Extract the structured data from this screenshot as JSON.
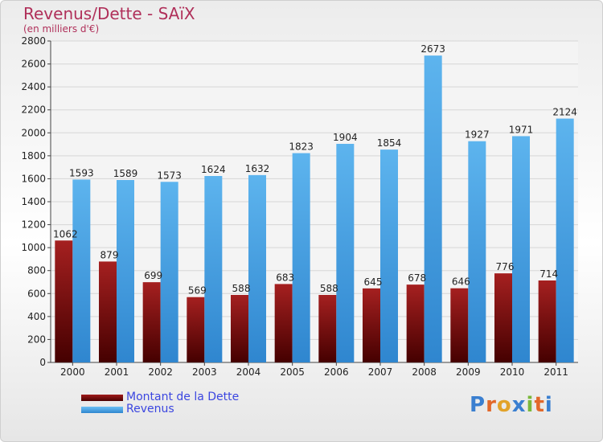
{
  "title": "Revenus/Dette - SAïX",
  "subtitle": "(en milliers d'€)",
  "logo_text": "Proxiti",
  "colors": {
    "dette": "#7a1010",
    "revenus": "#4aa3e6",
    "title": "#b0305a",
    "legend_text": "#3b46e0"
  },
  "chart_data": {
    "type": "bar",
    "categories": [
      "2000",
      "2001",
      "2002",
      "2003",
      "2004",
      "2005",
      "2006",
      "2007",
      "2008",
      "2009",
      "2010",
      "2011"
    ],
    "series": [
      {
        "name": "Montant de la Dette",
        "values": [
          1062,
          879,
          699,
          569,
          588,
          683,
          588,
          645,
          678,
          646,
          776,
          714
        ]
      },
      {
        "name": "Revenus",
        "values": [
          1593,
          1589,
          1573,
          1624,
          1632,
          1823,
          1904,
          1854,
          2673,
          1927,
          1971,
          2124
        ]
      }
    ],
    "ylim": [
      0,
      2800
    ],
    "ytick_step": 200,
    "grid": true,
    "legend_position": "bottom-left"
  }
}
